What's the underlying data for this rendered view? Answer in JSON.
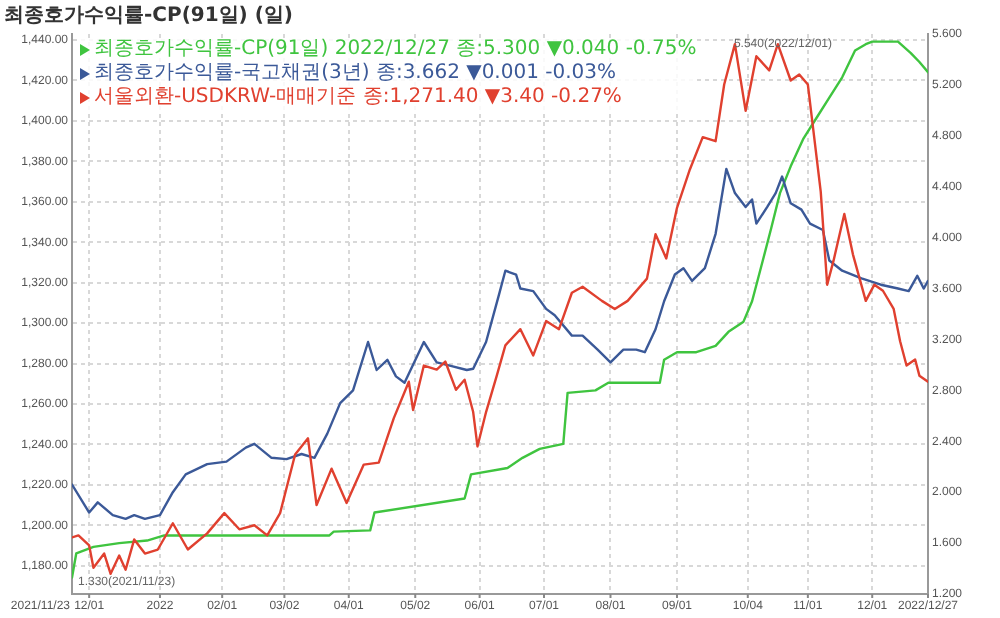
{
  "chart_data": {
    "type": "line",
    "title": "최종호가수익률-CP(91일) (일)",
    "xlim": [
      "2021-11-23",
      "2022-12-27"
    ],
    "xticks": [
      {
        "value": "2021-12-01",
        "label": "12/01"
      },
      {
        "value": "2022-01-03",
        "label": "2022"
      },
      {
        "value": "2022-02-01",
        "label": "02/01"
      },
      {
        "value": "2022-03-02",
        "label": "03/02"
      },
      {
        "value": "2022-04-01",
        "label": "04/01"
      },
      {
        "value": "2022-05-02",
        "label": "05/02"
      },
      {
        "value": "2022-06-01",
        "label": "06/01"
      },
      {
        "value": "2022-07-01",
        "label": "07/01"
      },
      {
        "value": "2022-08-01",
        "label": "08/01"
      },
      {
        "value": "2022-09-01",
        "label": "09/01"
      },
      {
        "value": "2022-10-04",
        "label": "10/04"
      },
      {
        "value": "2022-11-01",
        "label": "11/01"
      },
      {
        "value": "2022-12-01",
        "label": "12/01"
      },
      {
        "value": "2022-12-27",
        "label": "2022/12/27"
      }
    ],
    "ylim": [
      1166,
      1443
    ],
    "yticks": [
      {
        "value": 1180,
        "label": "1,180.00"
      },
      {
        "value": 1200,
        "label": "1,200.00"
      },
      {
        "value": 1220,
        "label": "1,220.00"
      },
      {
        "value": 1240,
        "label": "1,240.00"
      },
      {
        "value": 1260,
        "label": "1,260.00"
      },
      {
        "value": 1280,
        "label": "1,280.00"
      },
      {
        "value": 1300,
        "label": "1,300.00"
      },
      {
        "value": 1320,
        "label": "1,320.00"
      },
      {
        "value": 1340,
        "label": "1,340.00"
      },
      {
        "value": 1360,
        "label": "1,360.00"
      },
      {
        "value": 1380,
        "label": "1,380.00"
      },
      {
        "value": 1400,
        "label": "1,400.00"
      },
      {
        "value": 1420,
        "label": "1,420.00"
      },
      {
        "value": 1440,
        "label": "1,440.00"
      }
    ],
    "y2lim": [
      1.2,
      5.6
    ],
    "y2ticks": [
      {
        "value": 1.2,
        "label": "1.200"
      },
      {
        "value": 1.6,
        "label": "1.600"
      },
      {
        "value": 2,
        "label": "2.000"
      },
      {
        "value": 2.4,
        "label": "2.400"
      },
      {
        "value": 2.8,
        "label": "2.800"
      },
      {
        "value": 3.2,
        "label": "3.200"
      },
      {
        "value": 3.6,
        "label": "3.600"
      },
      {
        "value": 4,
        "label": "4.000"
      },
      {
        "value": 4.4,
        "label": "4.400"
      },
      {
        "value": 4.8,
        "label": "4.800"
      },
      {
        "value": 5.2,
        "label": "5.200"
      },
      {
        "value": 5.6,
        "label": "5.600"
      }
    ],
    "grid": true,
    "legend": "top left",
    "marker": "none",
    "line_style": "solid",
    "annotations": [
      "1.330(2021/11/23)",
      "5.540(2022/12/01)",
      "2021/11/23"
    ],
    "series": [
      {
        "name": "최종호가수익률-CP(91일) 2022/12/27 종:5.300 ▼0.040 -0.75%",
        "color": "#3fc43f",
        "axis": "y2",
        "x": [
          "2021-11-23",
          "2021-11-25",
          "2021-12-03",
          "2021-12-15",
          "2021-12-28",
          "2022-01-05",
          "2022-03-23",
          "2022-03-25",
          "2022-04-11",
          "2022-04-13",
          "2022-05-25",
          "2022-05-28",
          "2022-06-14",
          "2022-06-21",
          "2022-06-29",
          "2022-07-10",
          "2022-07-12",
          "2022-07-25",
          "2022-07-31",
          "2022-08-24",
          "2022-08-26",
          "2022-09-01",
          "2022-09-10",
          "2022-09-19",
          "2022-09-25",
          "2022-10-02",
          "2022-10-06",
          "2022-10-11",
          "2022-10-15",
          "2022-10-19",
          "2022-10-24",
          "2022-10-30",
          "2022-11-05",
          "2022-11-11",
          "2022-11-17",
          "2022-11-23",
          "2022-11-28",
          "2022-12-01",
          "2022-12-13",
          "2022-12-19",
          "2022-12-23",
          "2022-12-27"
        ],
        "values": [
          1.33,
          1.52,
          1.57,
          1.6,
          1.62,
          1.66,
          1.66,
          1.69,
          1.7,
          1.84,
          1.95,
          2.14,
          2.19,
          2.27,
          2.34,
          2.38,
          2.78,
          2.8,
          2.86,
          2.86,
          3.04,
          3.1,
          3.1,
          3.15,
          3.26,
          3.34,
          3.5,
          3.82,
          4.08,
          4.35,
          4.56,
          4.78,
          4.94,
          5.1,
          5.26,
          5.47,
          5.52,
          5.54,
          5.54,
          5.45,
          5.38,
          5.3
        ]
      },
      {
        "name": "최종호가수익률-국고채권(3년) 종:3.662 ▼0.001 -0.03%",
        "color": "#3b5998",
        "axis": "y2",
        "x": [
          "2021-11-23",
          "2021-12-01",
          "2021-12-05",
          "2021-12-12",
          "2021-12-18",
          "2021-12-22",
          "2021-12-27",
          "2022-01-03",
          "2022-01-09",
          "2022-01-15",
          "2022-01-25",
          "2022-02-03",
          "2022-02-12",
          "2022-02-16",
          "2022-02-24",
          "2022-03-03",
          "2022-03-10",
          "2022-03-16",
          "2022-03-22",
          "2022-03-28",
          "2022-04-03",
          "2022-04-10",
          "2022-04-14",
          "2022-04-19",
          "2022-04-23",
          "2022-04-27",
          "2022-05-06",
          "2022-05-12",
          "2022-05-19",
          "2022-05-26",
          "2022-05-29",
          "2022-06-04",
          "2022-06-10",
          "2022-06-13",
          "2022-06-18",
          "2022-06-20",
          "2022-06-26",
          "2022-07-02",
          "2022-07-06",
          "2022-07-14",
          "2022-07-19",
          "2022-07-26",
          "2022-08-01",
          "2022-08-07",
          "2022-08-13",
          "2022-08-17",
          "2022-08-22",
          "2022-08-26",
          "2022-08-31",
          "2022-09-04",
          "2022-09-08",
          "2022-09-14",
          "2022-09-19",
          "2022-09-24",
          "2022-09-28",
          "2022-10-03",
          "2022-10-06",
          "2022-10-08",
          "2022-10-13",
          "2022-10-17",
          "2022-10-20",
          "2022-10-24",
          "2022-10-29",
          "2022-11-02",
          "2022-11-08",
          "2022-11-11",
          "2022-11-17",
          "2022-11-26",
          "2022-12-05",
          "2022-12-13",
          "2022-12-18",
          "2022-12-22",
          "2022-12-25",
          "2022-12-27"
        ],
        "values": [
          2.06,
          1.84,
          1.92,
          1.82,
          1.79,
          1.82,
          1.79,
          1.82,
          2.0,
          2.14,
          2.22,
          2.24,
          2.35,
          2.38,
          2.27,
          2.26,
          2.3,
          2.27,
          2.46,
          2.7,
          2.8,
          3.18,
          2.96,
          3.04,
          2.91,
          2.86,
          3.18,
          3.02,
          2.99,
          2.96,
          2.97,
          3.18,
          3.55,
          3.74,
          3.71,
          3.6,
          3.58,
          3.44,
          3.39,
          3.23,
          3.23,
          3.12,
          3.02,
          3.12,
          3.12,
          3.1,
          3.28,
          3.5,
          3.71,
          3.76,
          3.66,
          3.76,
          4.03,
          4.54,
          4.35,
          4.24,
          4.3,
          4.11,
          4.24,
          4.35,
          4.48,
          4.27,
          4.22,
          4.11,
          4.06,
          3.82,
          3.74,
          3.68,
          3.63,
          3.6,
          3.58,
          3.7,
          3.6,
          3.66
        ]
      },
      {
        "name": "서울외환-USDKRW-매매기준 종:1,271.40 ▼3.40 -0.27%",
        "color": "#e0402f",
        "x": [
          "2021-11-23",
          "2021-11-26",
          "2021-12-01",
          "2021-12-03",
          "2021-12-08",
          "2021-12-11",
          "2021-12-15",
          "2021-12-18",
          "2021-12-22",
          "2021-12-27",
          "2022-01-02",
          "2022-01-09",
          "2022-01-16",
          "2022-01-25",
          "2022-02-02",
          "2022-02-09",
          "2022-02-16",
          "2022-02-22",
          "2022-02-28",
          "2022-03-07",
          "2022-03-13",
          "2022-03-17",
          "2022-03-24",
          "2022-03-31",
          "2022-04-08",
          "2022-04-15",
          "2022-04-22",
          "2022-04-29",
          "2022-05-01",
          "2022-05-06",
          "2022-05-12",
          "2022-05-16",
          "2022-05-21",
          "2022-05-25",
          "2022-05-29",
          "2022-05-31",
          "2022-06-04",
          "2022-06-09",
          "2022-06-13",
          "2022-06-20",
          "2022-06-26",
          "2022-07-02",
          "2022-07-08",
          "2022-07-14",
          "2022-07-19",
          "2022-07-28",
          "2022-08-03",
          "2022-08-09",
          "2022-08-18",
          "2022-08-22",
          "2022-08-27",
          "2022-09-01",
          "2022-09-07",
          "2022-09-13",
          "2022-09-19",
          "2022-09-23",
          "2022-09-28",
          "2022-10-03",
          "2022-10-08",
          "2022-10-14",
          "2022-10-18",
          "2022-10-24",
          "2022-10-28",
          "2022-11-01",
          "2022-11-07",
          "2022-11-10",
          "2022-11-13",
          "2022-11-18",
          "2022-11-22",
          "2022-11-28",
          "2022-12-02",
          "2022-12-06",
          "2022-12-11",
          "2022-12-14",
          "2022-12-17",
          "2022-12-21",
          "2022-12-23",
          "2022-12-27"
        ],
        "values": [
          1194,
          1195,
          1190,
          1179,
          1186,
          1176,
          1185,
          1178,
          1193,
          1186,
          1188,
          1201,
          1188,
          1196,
          1206,
          1198,
          1200,
          1195,
          1206,
          1235,
          1243,
          1210,
          1228,
          1211,
          1230,
          1231,
          1253,
          1271,
          1257,
          1279,
          1277,
          1281,
          1267,
          1272,
          1256,
          1239,
          1256,
          1274,
          1289,
          1297,
          1284,
          1301,
          1297,
          1315,
          1318,
          1311,
          1307,
          1311,
          1322,
          1344,
          1332,
          1357,
          1376,
          1392,
          1390,
          1418,
          1438,
          1405,
          1432,
          1425,
          1438,
          1420,
          1423,
          1418,
          1365,
          1319,
          1331,
          1354,
          1334,
          1311,
          1319,
          1316,
          1307,
          1291,
          1279,
          1282,
          1274,
          1271
        ]
      }
    ]
  }
}
